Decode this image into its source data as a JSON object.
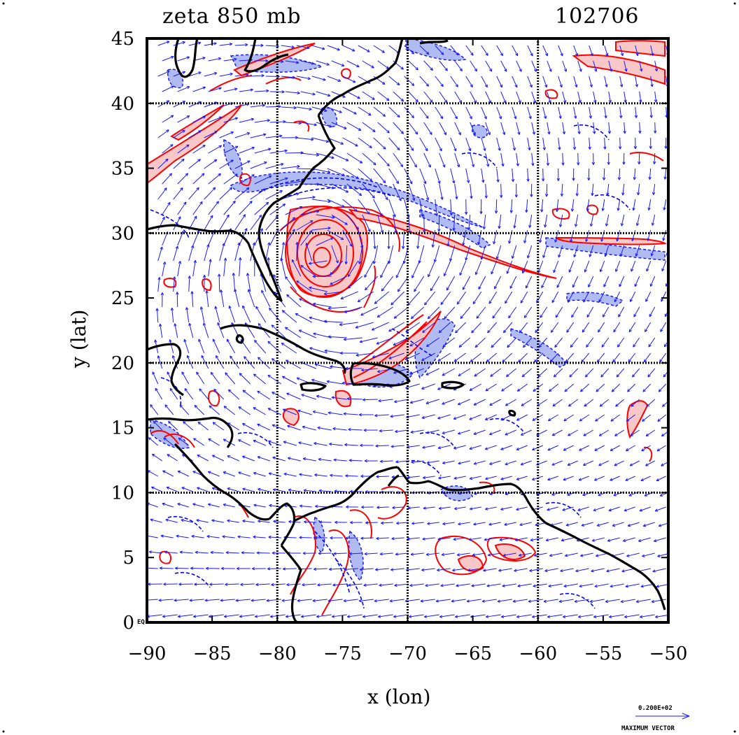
{
  "title_left": "zeta 850 mb",
  "title_right": "102706",
  "x_axis": {
    "label": "x (lon)",
    "range": [
      -90,
      -50
    ],
    "ticks": [
      -90,
      -85,
      -80,
      -75,
      -70,
      -65,
      -60,
      -55,
      -50
    ],
    "tick_labels": [
      "−90",
      "−85",
      "−80",
      "−75",
      "−70",
      "−65",
      "−60",
      "−55",
      "−50"
    ]
  },
  "y_axis": {
    "label": "y (lat)",
    "range": [
      0,
      45
    ],
    "ticks": [
      0,
      5,
      10,
      15,
      20,
      25,
      30,
      35,
      40,
      45
    ],
    "tick_labels": [
      "0",
      "5",
      "10",
      "15",
      "20",
      "25",
      "30",
      "35",
      "40",
      "45"
    ],
    "eq_label": "EQ"
  },
  "grid_lines_lon": [
    -80,
    -70,
    -60
  ],
  "grid_lines_lat": [
    10,
    20,
    30,
    40
  ],
  "vector_legend": {
    "value": "0.200E+02",
    "label": "MAXIMUM VECTOR"
  },
  "colors": {
    "positive_vorticity": "#ff0000",
    "positive_fill": "#f8c8c8",
    "negative_vorticity": "#0000ff",
    "negative_fill": "#a8b4f0",
    "vectors": "#1a1aff",
    "coastline": "#000000"
  },
  "cyclone_center": {
    "lon": -76.5,
    "lat": 28.5
  }
}
